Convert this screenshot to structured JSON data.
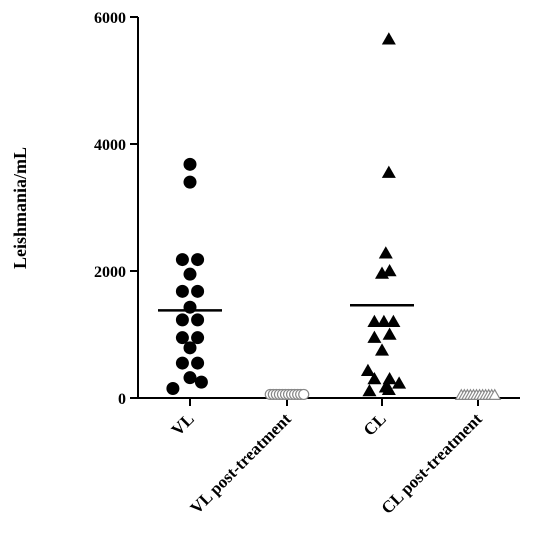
{
  "chart_data": {
    "type": "scatter",
    "title": "",
    "xlabel": "",
    "ylabel": "Leishmania/mL",
    "ylim": [
      0,
      6000
    ],
    "yticks": [
      0,
      2000,
      4000,
      6000
    ],
    "categories": [
      "VL",
      "VL post-treatment",
      "CL",
      "CL post-treatment"
    ],
    "grid": false,
    "series": [
      {
        "category": "VL",
        "marker": "filled-circle",
        "points": [
          [
            0,
            3680
          ],
          [
            0,
            3400
          ],
          [
            -0.2,
            2180
          ],
          [
            0.2,
            2180
          ],
          [
            0,
            1950
          ],
          [
            -0.2,
            1680
          ],
          [
            0.2,
            1680
          ],
          [
            0,
            1430
          ],
          [
            -0.2,
            1230
          ],
          [
            0.2,
            1230
          ],
          [
            -0.2,
            950
          ],
          [
            0.2,
            950
          ],
          [
            0,
            790
          ],
          [
            -0.2,
            550
          ],
          [
            0.2,
            550
          ],
          [
            0,
            320
          ],
          [
            -0.45,
            150
          ],
          [
            0.3,
            250
          ]
        ],
        "mean": 1380
      },
      {
        "category": "VL post-treatment",
        "marker": "open-circle",
        "points": [
          [
            -0.44,
            25
          ],
          [
            -0.36,
            25
          ],
          [
            -0.28,
            25
          ],
          [
            -0.2,
            25
          ],
          [
            -0.12,
            25
          ],
          [
            -0.04,
            25
          ],
          [
            0.04,
            25
          ],
          [
            0.12,
            25
          ],
          [
            0.2,
            25
          ],
          [
            0.28,
            25
          ],
          [
            0.36,
            25
          ],
          [
            0.44,
            25
          ]
        ],
        "mean": 25
      },
      {
        "category": "CL",
        "marker": "filled-triangle",
        "points": [
          [
            0.18,
            5650
          ],
          [
            0.18,
            3550
          ],
          [
            0.1,
            2280
          ],
          [
            0,
            1960
          ],
          [
            0.2,
            2000
          ],
          [
            -0.2,
            1200
          ],
          [
            0.05,
            1200
          ],
          [
            0.3,
            1200
          ],
          [
            -0.2,
            950
          ],
          [
            0.2,
            1000
          ],
          [
            0,
            750
          ],
          [
            -0.37,
            430
          ],
          [
            -0.2,
            300
          ],
          [
            0.2,
            300
          ],
          [
            0.1,
            170
          ],
          [
            0.45,
            230
          ],
          [
            -0.33,
            110
          ],
          [
            0.18,
            130
          ]
        ],
        "mean": 1460
      },
      {
        "category": "CL post-treatment",
        "marker": "open-triangle",
        "points": [
          [
            -0.44,
            12
          ],
          [
            -0.36,
            12
          ],
          [
            -0.28,
            12
          ],
          [
            -0.2,
            12
          ],
          [
            -0.12,
            12
          ],
          [
            -0.04,
            12
          ],
          [
            0.04,
            12
          ],
          [
            0.12,
            12
          ],
          [
            0.2,
            12
          ],
          [
            0.28,
            12
          ],
          [
            0.36,
            12
          ],
          [
            0.44,
            12
          ]
        ],
        "mean": 12
      }
    ]
  }
}
